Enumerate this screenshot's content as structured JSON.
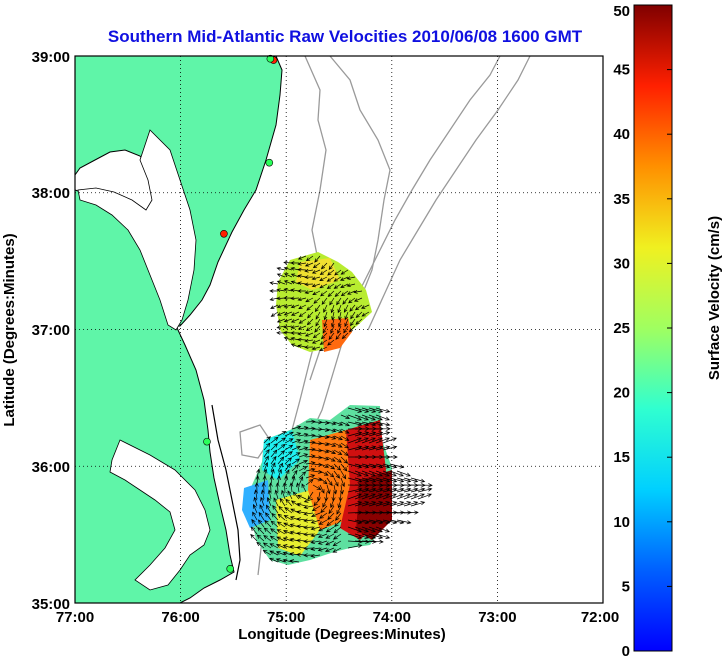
{
  "map": {
    "title": "Southern Mid-Atlantic Raw Velocities 2010/06/08 1600 GMT",
    "xlabel": "Longitude (Degrees:Minutes)",
    "ylabel": "Latitude (Degrees:Minutes)",
    "x_ticks": [
      "77:00",
      "76:00",
      "75:00",
      "74:00",
      "73:00",
      "72:00"
    ],
    "y_ticks": [
      "39:00",
      "38:00",
      "37:00",
      "36:00",
      "35:00"
    ],
    "lon_range": [
      -77,
      -72
    ],
    "lat_range": [
      35,
      39
    ],
    "grid": "dotted",
    "colors": {
      "land": "#5ff5a8",
      "water": "#ffffff",
      "coastline": "#000000",
      "bathymetry": "#9a9a9a",
      "title": "#1010e0",
      "arrows": "#000000"
    },
    "stations": [
      {
        "lon": -75.12,
        "lat": 38.97,
        "color": "#ff2000"
      },
      {
        "lon": -75.15,
        "lat": 38.98,
        "color": "#2aff5a"
      },
      {
        "lon": -75.16,
        "lat": 38.22,
        "color": "#2aff5a"
      },
      {
        "lon": -75.59,
        "lat": 37.7,
        "color": "#ff2000"
      },
      {
        "lon": -75.75,
        "lat": 36.18,
        "color": "#2aff5a"
      },
      {
        "lon": -75.53,
        "lat": 35.25,
        "color": "#2aff5a"
      }
    ],
    "icons": [
      "vector-arrow",
      "radar-station-marker"
    ]
  },
  "colorbar": {
    "label": "Surface Velocity (cm/s)",
    "ticks": [
      "0",
      "5",
      "10",
      "15",
      "20",
      "25",
      "30",
      "35",
      "40",
      "45",
      "50"
    ],
    "range": [
      0,
      50
    ],
    "units": "cm/s",
    "colormap": "jet"
  }
}
